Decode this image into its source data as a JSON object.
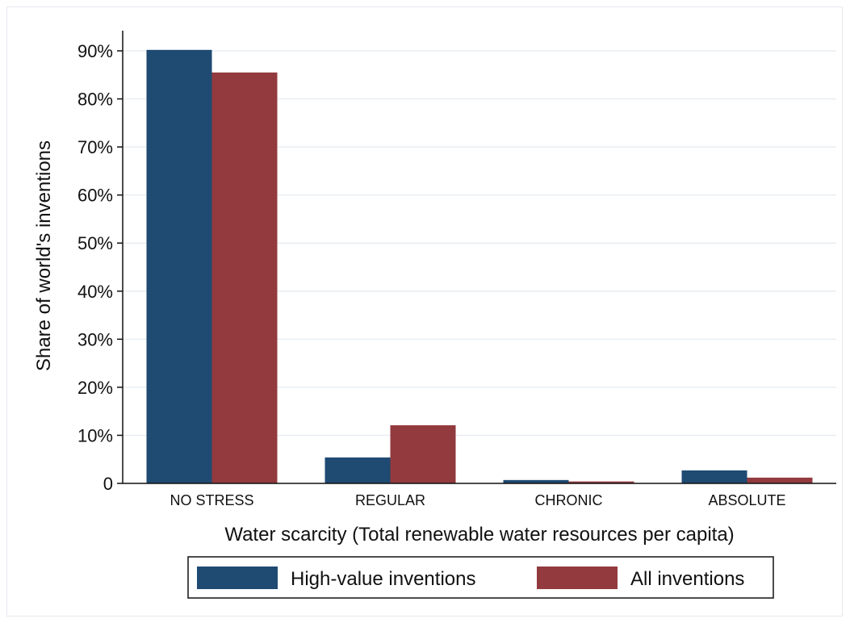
{
  "chart_data": {
    "type": "bar",
    "categories": [
      "NO STRESS",
      "REGULAR",
      "CHRONIC",
      "ABSOLUTE"
    ],
    "series": [
      {
        "name": "High-value inventions",
        "values": [
          90.2,
          5.4,
          0.7,
          2.7
        ],
        "color": "#1f4a72"
      },
      {
        "name": "All inventions",
        "values": [
          85.5,
          12.1,
          0.4,
          1.2
        ],
        "color": "#923a3e"
      }
    ],
    "xlabel": "Water scarcity (Total renewable water resources per capita)",
    "ylabel": "Share of world's inventions",
    "ylim": [
      0,
      90
    ],
    "yticks": [
      0,
      10,
      20,
      30,
      40,
      50,
      60,
      70,
      80,
      90
    ],
    "ytick_labels": [
      "0",
      "10%",
      "20%",
      "30%",
      "40%",
      "50%",
      "60%",
      "70%",
      "80%",
      "90%"
    ],
    "grid": true,
    "legend_position": "bottom"
  }
}
